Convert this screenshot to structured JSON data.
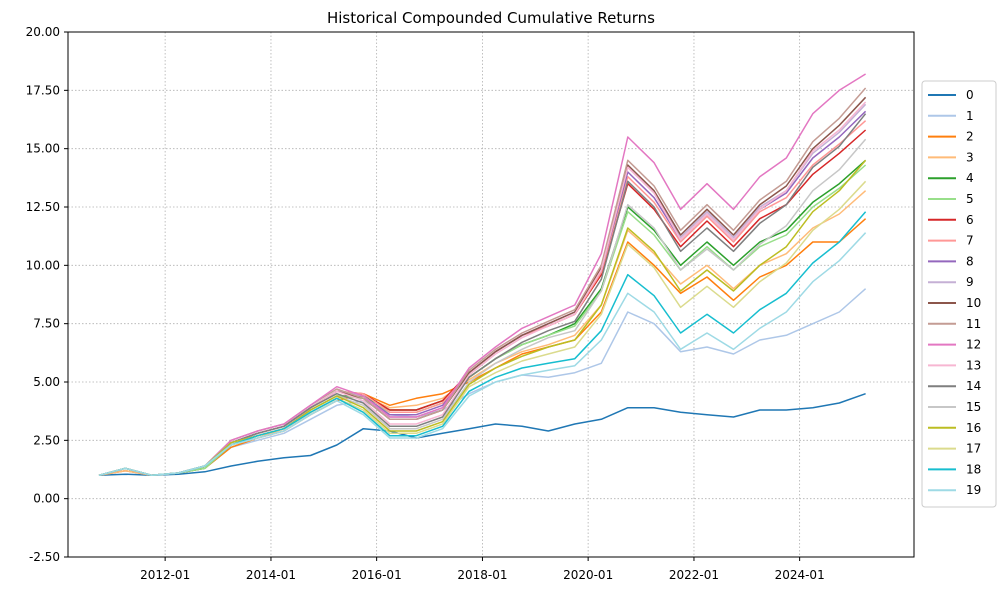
{
  "chart_data": {
    "type": "line",
    "title": "Historical Compounded Cumulative Returns",
    "xlabel": "",
    "ylabel": "",
    "xlim": [
      "2010-03-01",
      "2026-03-01"
    ],
    "ylim": [
      -2.5,
      20.0
    ],
    "x_tick_labels": [
      "2012-01",
      "2014-01",
      "2016-01",
      "2018-01",
      "2020-01",
      "2022-01",
      "2024-01"
    ],
    "x_tick_dates": [
      "2012-01-01",
      "2014-01-01",
      "2016-01-01",
      "2018-01-01",
      "2020-01-01",
      "2022-01-01",
      "2024-01-01"
    ],
    "y_ticks": [
      -2.5,
      0.0,
      2.5,
      5.0,
      7.5,
      10.0,
      12.5,
      15.0,
      17.5,
      20.0
    ],
    "y_tick_labels": [
      "-2.50",
      "0.00",
      "2.50",
      "5.00",
      "7.50",
      "10.00",
      "12.50",
      "15.00",
      "17.50",
      "20.00"
    ],
    "grid": true,
    "legend_position": "right",
    "x_dates": [
      "2010-10-01",
      "2011-04-01",
      "2011-10-01",
      "2012-04-01",
      "2012-10-01",
      "2013-04-01",
      "2013-10-01",
      "2014-04-01",
      "2014-10-01",
      "2015-04-01",
      "2015-10-01",
      "2016-04-01",
      "2016-10-01",
      "2017-04-01",
      "2017-10-01",
      "2018-04-01",
      "2018-10-01",
      "2019-04-01",
      "2019-10-01",
      "2020-04-01",
      "2020-10-01",
      "2021-04-01",
      "2021-10-01",
      "2022-04-01",
      "2022-10-01",
      "2023-04-01",
      "2023-10-01",
      "2024-04-01",
      "2024-10-01",
      "2025-04-01"
    ],
    "series": [
      {
        "name": "0",
        "color": "#1f77b4",
        "values": [
          1.0,
          1.05,
          1.0,
          1.05,
          1.15,
          1.4,
          1.6,
          1.75,
          1.85,
          2.3,
          3.0,
          2.9,
          2.6,
          2.8,
          3.0,
          3.2,
          3.1,
          2.9,
          3.2,
          3.4,
          3.9,
          3.9,
          3.7,
          3.6,
          3.5,
          3.8,
          3.8,
          3.9,
          4.1,
          4.5
        ]
      },
      {
        "name": "1",
        "color": "#aec7e8",
        "values": [
          1.0,
          1.2,
          1.0,
          1.1,
          1.3,
          2.2,
          2.5,
          2.8,
          3.4,
          4.0,
          4.2,
          3.6,
          3.5,
          3.8,
          4.5,
          5.0,
          5.3,
          5.2,
          5.4,
          5.8,
          8.0,
          7.5,
          6.3,
          6.5,
          6.2,
          6.8,
          7.0,
          7.5,
          8.0,
          9.0
        ]
      },
      {
        "name": "2",
        "color": "#ff7f0e",
        "values": [
          1.0,
          1.2,
          1.0,
          1.1,
          1.3,
          2.2,
          2.6,
          2.9,
          3.6,
          4.2,
          4.5,
          4.0,
          4.3,
          4.5,
          5.0,
          5.6,
          6.2,
          6.5,
          6.8,
          8.0,
          11.0,
          10.0,
          8.8,
          9.5,
          8.5,
          9.5,
          10.0,
          11.0,
          11.0,
          12.0
        ]
      },
      {
        "name": "3",
        "color": "#ffbb78",
        "values": [
          1.0,
          1.2,
          1.0,
          1.1,
          1.3,
          2.3,
          2.6,
          3.0,
          3.7,
          4.3,
          4.4,
          3.9,
          4.0,
          4.3,
          5.1,
          5.8,
          6.3,
          6.6,
          7.0,
          8.3,
          11.5,
          10.5,
          9.2,
          10.0,
          9.0,
          10.0,
          10.5,
          11.6,
          12.2,
          13.2
        ]
      },
      {
        "name": "4",
        "color": "#2ca02c",
        "values": [
          1.0,
          1.3,
          1.0,
          1.1,
          1.3,
          2.3,
          2.7,
          3.0,
          3.8,
          4.4,
          4.4,
          3.8,
          3.8,
          4.2,
          5.2,
          6.0,
          6.6,
          7.0,
          7.5,
          9.0,
          12.5,
          11.5,
          10.0,
          11.0,
          10.0,
          11.0,
          11.5,
          12.7,
          13.5,
          14.5
        ]
      },
      {
        "name": "5",
        "color": "#98df8a",
        "values": [
          1.0,
          1.3,
          1.0,
          1.1,
          1.3,
          2.3,
          2.7,
          3.0,
          3.8,
          4.4,
          4.3,
          3.7,
          3.7,
          4.1,
          5.2,
          6.0,
          6.6,
          7.0,
          7.4,
          8.9,
          12.3,
          11.3,
          9.8,
          10.8,
          9.8,
          10.8,
          11.3,
          12.5,
          13.3,
          14.3
        ]
      },
      {
        "name": "6",
        "color": "#d62728",
        "values": [
          1.0,
          1.3,
          1.0,
          1.1,
          1.4,
          2.4,
          2.8,
          3.1,
          3.9,
          4.6,
          4.5,
          3.8,
          3.8,
          4.2,
          5.4,
          6.3,
          7.0,
          7.4,
          7.9,
          9.6,
          13.5,
          12.4,
          10.8,
          11.9,
          10.8,
          12.0,
          12.6,
          13.9,
          14.8,
          15.8
        ]
      },
      {
        "name": "7",
        "color": "#ff9896",
        "values": [
          1.0,
          1.3,
          1.0,
          1.1,
          1.4,
          2.4,
          2.8,
          3.1,
          3.9,
          4.6,
          4.5,
          3.7,
          3.7,
          4.1,
          5.4,
          6.3,
          7.0,
          7.4,
          7.9,
          9.7,
          13.8,
          12.7,
          11.0,
          12.1,
          11.0,
          12.3,
          12.9,
          14.3,
          15.2,
          16.2
        ]
      },
      {
        "name": "8",
        "color": "#9467bd",
        "values": [
          1.0,
          1.3,
          1.0,
          1.1,
          1.4,
          2.4,
          2.8,
          3.1,
          3.9,
          4.6,
          4.4,
          3.6,
          3.6,
          4.0,
          5.4,
          6.3,
          7.0,
          7.5,
          8.0,
          9.8,
          14.0,
          12.9,
          11.1,
          12.2,
          11.1,
          12.4,
          13.1,
          14.6,
          15.5,
          16.6
        ]
      },
      {
        "name": "9",
        "color": "#c5b0d5",
        "values": [
          1.0,
          1.3,
          1.0,
          1.1,
          1.4,
          2.4,
          2.8,
          3.1,
          3.9,
          4.6,
          4.4,
          3.5,
          3.5,
          3.9,
          5.4,
          6.3,
          7.0,
          7.5,
          8.0,
          9.9,
          14.2,
          13.1,
          11.2,
          12.3,
          11.2,
          12.5,
          13.2,
          14.8,
          15.7,
          16.9
        ]
      },
      {
        "name": "10",
        "color": "#8c564b",
        "values": [
          1.0,
          1.3,
          1.0,
          1.1,
          1.4,
          2.4,
          2.8,
          3.1,
          3.9,
          4.6,
          4.3,
          3.4,
          3.4,
          3.8,
          5.4,
          6.3,
          7.0,
          7.5,
          8.0,
          9.9,
          14.3,
          13.2,
          11.3,
          12.4,
          11.3,
          12.6,
          13.4,
          15.0,
          16.0,
          17.2
        ]
      },
      {
        "name": "11",
        "color": "#c49c94",
        "values": [
          1.0,
          1.3,
          1.0,
          1.1,
          1.4,
          2.5,
          2.9,
          3.2,
          4.0,
          4.7,
          4.3,
          3.4,
          3.4,
          3.8,
          5.5,
          6.4,
          7.1,
          7.6,
          8.1,
          10.0,
          14.5,
          13.4,
          11.5,
          12.6,
          11.5,
          12.8,
          13.6,
          15.3,
          16.3,
          17.6
        ]
      },
      {
        "name": "12",
        "color": "#e377c2",
        "values": [
          1.0,
          1.3,
          1.0,
          1.1,
          1.4,
          2.5,
          2.9,
          3.2,
          4.0,
          4.8,
          4.4,
          3.5,
          3.5,
          3.9,
          5.6,
          6.5,
          7.3,
          7.8,
          8.3,
          10.5,
          15.5,
          14.4,
          12.4,
          13.5,
          12.4,
          13.8,
          14.6,
          16.5,
          17.5,
          18.2
        ]
      },
      {
        "name": "13",
        "color": "#f7b6d2",
        "values": [
          1.0,
          1.3,
          1.0,
          1.1,
          1.4,
          2.4,
          2.8,
          3.1,
          3.9,
          4.6,
          4.2,
          3.2,
          3.2,
          3.6,
          5.3,
          6.2,
          6.9,
          7.4,
          7.9,
          9.8,
          14.2,
          13.1,
          11.1,
          12.2,
          11.1,
          12.4,
          13.2,
          14.9,
          15.8,
          17.0
        ]
      },
      {
        "name": "14",
        "color": "#7f7f7f",
        "values": [
          1.0,
          1.3,
          1.0,
          1.1,
          1.4,
          2.4,
          2.8,
          3.1,
          3.9,
          4.5,
          4.1,
          3.1,
          3.1,
          3.5,
          5.2,
          6.0,
          6.7,
          7.2,
          7.6,
          9.4,
          13.6,
          12.5,
          10.6,
          11.6,
          10.6,
          11.8,
          12.6,
          14.2,
          15.1,
          16.5
        ]
      },
      {
        "name": "15",
        "color": "#c7c7c7",
        "values": [
          1.0,
          1.3,
          1.0,
          1.1,
          1.4,
          2.4,
          2.7,
          3.0,
          3.8,
          4.4,
          4.0,
          3.0,
          3.0,
          3.4,
          5.0,
          5.8,
          6.4,
          6.9,
          7.2,
          8.9,
          12.6,
          11.6,
          9.8,
          10.7,
          9.8,
          10.9,
          11.7,
          13.2,
          14.1,
          15.4
        ]
      },
      {
        "name": "16",
        "color": "#bcbd22",
        "values": [
          1.0,
          1.3,
          1.0,
          1.1,
          1.4,
          2.4,
          2.7,
          3.0,
          3.8,
          4.4,
          3.9,
          2.9,
          2.9,
          3.3,
          4.9,
          5.6,
          6.1,
          6.5,
          6.8,
          8.3,
          11.6,
          10.6,
          8.9,
          9.8,
          8.9,
          10.0,
          10.8,
          12.3,
          13.2,
          14.5
        ]
      },
      {
        "name": "17",
        "color": "#dbdb8d",
        "values": [
          1.0,
          1.3,
          1.0,
          1.1,
          1.4,
          2.3,
          2.7,
          3.0,
          3.7,
          4.3,
          3.8,
          2.8,
          2.8,
          3.2,
          4.8,
          5.4,
          5.9,
          6.2,
          6.5,
          7.9,
          10.9,
          9.9,
          8.2,
          9.1,
          8.2,
          9.3,
          10.1,
          11.5,
          12.4,
          13.6
        ]
      },
      {
        "name": "18",
        "color": "#17becf",
        "values": [
          1.0,
          1.3,
          1.0,
          1.1,
          1.4,
          2.3,
          2.7,
          3.0,
          3.7,
          4.3,
          3.7,
          2.7,
          2.7,
          3.1,
          4.6,
          5.2,
          5.6,
          5.8,
          6.0,
          7.2,
          9.6,
          8.7,
          7.1,
          7.9,
          7.1,
          8.1,
          8.8,
          10.1,
          11.0,
          12.3
        ]
      },
      {
        "name": "19",
        "color": "#9edae5",
        "values": [
          1.0,
          1.3,
          1.0,
          1.1,
          1.4,
          2.3,
          2.6,
          2.9,
          3.6,
          4.2,
          3.6,
          2.6,
          2.6,
          3.0,
          4.4,
          5.0,
          5.3,
          5.5,
          5.7,
          6.8,
          8.8,
          8.0,
          6.4,
          7.1,
          6.4,
          7.3,
          8.0,
          9.3,
          10.2,
          11.4
        ]
      }
    ]
  }
}
